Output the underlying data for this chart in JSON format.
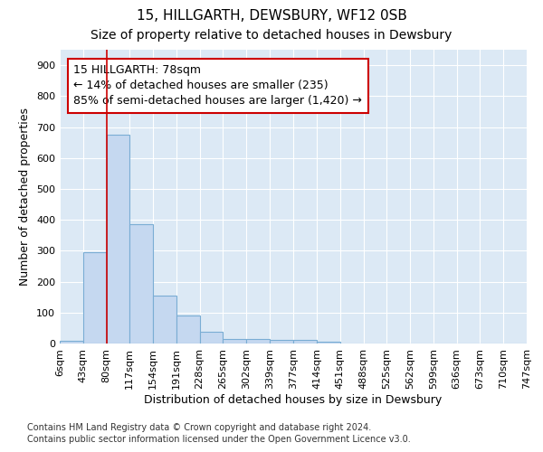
{
  "title": "15, HILLGARTH, DEWSBURY, WF12 0SB",
  "subtitle": "Size of property relative to detached houses in Dewsbury",
  "xlabel": "Distribution of detached houses by size in Dewsbury",
  "ylabel": "Number of detached properties",
  "bar_color": "#c5d8f0",
  "bar_edge_color": "#7aadd4",
  "background_color": "#dce9f5",
  "grid_color": "#ffffff",
  "annotation_line1": "15 HILLGARTH: 78sqm",
  "annotation_line2": "← 14% of detached houses are smaller (235)",
  "annotation_line3": "85% of semi-detached houses are larger (1,420) →",
  "annotation_box_color": "#ffffff",
  "annotation_border_color": "#cc0000",
  "vline_x": 80,
  "vline_color": "#cc0000",
  "bin_edges": [
    6,
    43,
    80,
    117,
    154,
    191,
    228,
    265,
    302,
    339,
    377,
    414,
    451,
    488,
    525,
    562,
    599,
    636,
    673,
    710,
    747
  ],
  "bar_heights": [
    10,
    295,
    675,
    385,
    155,
    90,
    37,
    16,
    16,
    11,
    12,
    6,
    0,
    0,
    0,
    0,
    0,
    0,
    0,
    0
  ],
  "ylim": [
    0,
    950
  ],
  "yticks": [
    0,
    100,
    200,
    300,
    400,
    500,
    600,
    700,
    800,
    900
  ],
  "footnote1": "Contains HM Land Registry data © Crown copyright and database right 2024.",
  "footnote2": "Contains public sector information licensed under the Open Government Licence v3.0.",
  "title_fontsize": 11,
  "subtitle_fontsize": 10,
  "axis_label_fontsize": 9,
  "tick_fontsize": 8,
  "annotation_fontsize": 9,
  "footnote_fontsize": 7
}
